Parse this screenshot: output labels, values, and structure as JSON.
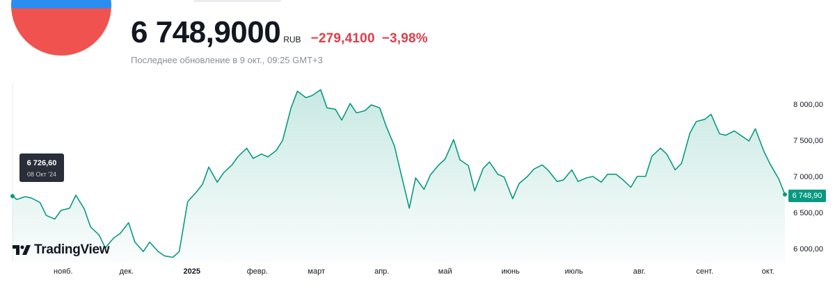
{
  "header": {
    "price": "6 748,9000",
    "currency": "RUB",
    "change_abs": "−279,4100",
    "change_pct": "−3,98%",
    "updated": "Последнее обновление в 9 окт., 09:25 GMT+3"
  },
  "colors": {
    "line": "#089981",
    "negative": "#e03c4a",
    "flag_top": "#2c8df0",
    "flag_bottom": "#f0534f",
    "tooltip_bg": "#2a2e39"
  },
  "branding": {
    "logo_text": "TradingView"
  },
  "tooltip": {
    "value": "6 726,60",
    "date": "08 Окт '24"
  },
  "last_price_label": "6 748,90",
  "chart_data": {
    "type": "area",
    "title": "",
    "xlabel": "",
    "ylabel": "",
    "ylim": [
      5800,
      8300
    ],
    "x_range": [
      "2024-10-08",
      "2025-10-09"
    ],
    "y_ticks": [
      {
        "value": 6000,
        "label": "6 000,00"
      },
      {
        "value": 6500,
        "label": "6 500,00"
      },
      {
        "value": 7000,
        "label": "7 000,00"
      },
      {
        "value": 7500,
        "label": "7 500,00"
      },
      {
        "value": 8000,
        "label": "8 000,00"
      }
    ],
    "x_ticks": [
      {
        "date": "2024-11-01",
        "label": "нояб."
      },
      {
        "date": "2024-12-01",
        "label": "дек."
      },
      {
        "date": "2025-01-01",
        "label": "2025"
      },
      {
        "date": "2025-02-01",
        "label": "февр."
      },
      {
        "date": "2025-03-01",
        "label": "март"
      },
      {
        "date": "2025-04-01",
        "label": "апр."
      },
      {
        "date": "2025-05-01",
        "label": "май"
      },
      {
        "date": "2025-06-01",
        "label": "июнь"
      },
      {
        "date": "2025-07-01",
        "label": "июль"
      },
      {
        "date": "2025-08-01",
        "label": "авг."
      },
      {
        "date": "2025-09-01",
        "label": "сент."
      },
      {
        "date": "2025-10-01",
        "label": "окт."
      }
    ],
    "series": [
      {
        "x": [
          "2024-10-08",
          "2024-10-10",
          "2024-10-14",
          "2024-10-17",
          "2024-10-21",
          "2024-10-24",
          "2024-10-28",
          "2024-10-31",
          "2024-11-04",
          "2024-11-07",
          "2024-11-11",
          "2024-11-14",
          "2024-11-18",
          "2024-11-21",
          "2024-11-25",
          "2024-11-28",
          "2024-12-02",
          "2024-12-05",
          "2024-12-09",
          "2024-12-12",
          "2024-12-16",
          "2024-12-19",
          "2024-12-23",
          "2024-12-26",
          "2024-12-30",
          "2025-01-03",
          "2025-01-06",
          "2025-01-09",
          "2025-01-13",
          "2025-01-16",
          "2025-01-20",
          "2025-01-23",
          "2025-01-27",
          "2025-01-30",
          "2025-02-03",
          "2025-02-06",
          "2025-02-10",
          "2025-02-13",
          "2025-02-17",
          "2025-02-20",
          "2025-02-24",
          "2025-02-27",
          "2025-03-03",
          "2025-03-06",
          "2025-03-10",
          "2025-03-13",
          "2025-03-17",
          "2025-03-20",
          "2025-03-24",
          "2025-03-27",
          "2025-03-31",
          "2025-04-03",
          "2025-04-07",
          "2025-04-10",
          "2025-04-14",
          "2025-04-17",
          "2025-04-21",
          "2025-04-24",
          "2025-04-28",
          "2025-05-01",
          "2025-05-05",
          "2025-05-08",
          "2025-05-12",
          "2025-05-15",
          "2025-05-19",
          "2025-05-22",
          "2025-05-26",
          "2025-05-29",
          "2025-06-02",
          "2025-06-05",
          "2025-06-09",
          "2025-06-12",
          "2025-06-16",
          "2025-06-19",
          "2025-06-23",
          "2025-06-26",
          "2025-06-30",
          "2025-07-03",
          "2025-07-07",
          "2025-07-10",
          "2025-07-14",
          "2025-07-17",
          "2025-07-21",
          "2025-07-24",
          "2025-07-28",
          "2025-07-31",
          "2025-08-04",
          "2025-08-07",
          "2025-08-11",
          "2025-08-14",
          "2025-08-18",
          "2025-08-21",
          "2025-08-25",
          "2025-08-28",
          "2025-09-01",
          "2025-09-04",
          "2025-09-08",
          "2025-09-11",
          "2025-09-15",
          "2025-09-18",
          "2025-09-22",
          "2025-09-25",
          "2025-09-29",
          "2025-10-02",
          "2025-10-06",
          "2025-10-09"
        ],
        "values": [
          6727,
          6680,
          6720,
          6700,
          6640,
          6460,
          6410,
          6530,
          6560,
          6740,
          6550,
          6300,
          6190,
          6010,
          6150,
          6210,
          6360,
          6090,
          5960,
          6090,
          5960,
          5900,
          5880,
          5960,
          6650,
          6780,
          6890,
          7130,
          6920,
          7050,
          7160,
          7280,
          7390,
          7250,
          7310,
          7270,
          7360,
          7500,
          7950,
          8180,
          8090,
          8120,
          8200,
          7950,
          7930,
          7780,
          8010,
          7880,
          7910,
          7990,
          7950,
          7700,
          7420,
          7050,
          6560,
          6980,
          6820,
          7020,
          7160,
          7240,
          7510,
          7230,
          7150,
          6800,
          7110,
          7200,
          7030,
          6990,
          6690,
          6900,
          7000,
          7100,
          7160,
          7080,
          6930,
          6950,
          7090,
          6930,
          6980,
          7000,
          6920,
          7030,
          7030,
          6960,
          6850,
          7000,
          7000,
          7280,
          7390,
          7310,
          7090,
          7180,
          7600,
          7760,
          7790,
          7860,
          7590,
          7570,
          7630,
          7570,
          7490,
          7660,
          7350,
          7170,
          6970,
          6750
        ]
      }
    ]
  }
}
